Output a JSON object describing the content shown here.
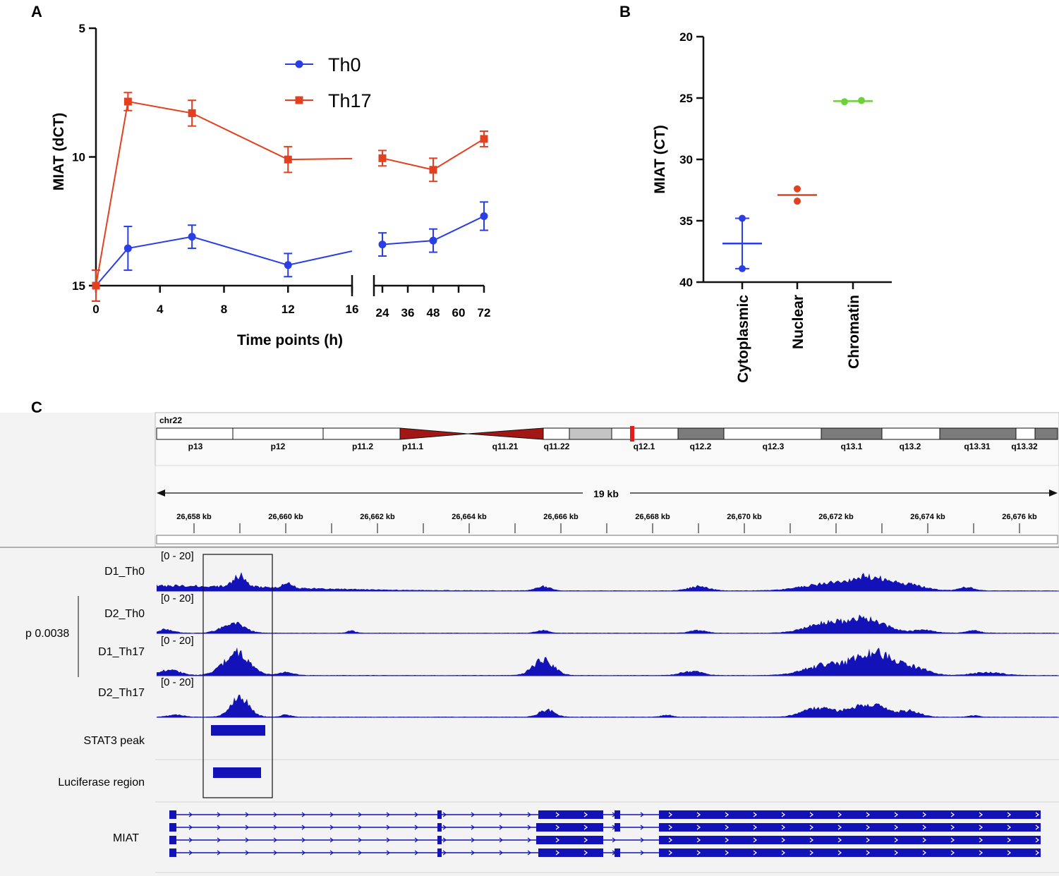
{
  "panels": {
    "a": "A",
    "b": "B",
    "c": "C"
  },
  "chart_data": [
    {
      "panel": "A",
      "type": "line",
      "title": "",
      "xlabel": "Time points (h)",
      "ylabel": "MIAT (dCT)",
      "ylim": [
        15,
        5
      ],
      "y_inverted": true,
      "yticks": [
        5,
        10,
        15
      ],
      "xticks_left": [
        0,
        4,
        8,
        12,
        16
      ],
      "xticks_right": [
        24,
        36,
        48,
        60,
        72
      ],
      "x_break": [
        16,
        24
      ],
      "legend": {
        "placement": "top-center",
        "entries": [
          "Th0",
          "Th17"
        ]
      },
      "series": [
        {
          "name": "Th0",
          "color": "#2a3ee6",
          "marker": "circle",
          "x": [
            0,
            2,
            6,
            12,
            24,
            48,
            72
          ],
          "y": [
            15.0,
            13.55,
            13.1,
            14.2,
            13.4,
            13.25,
            12.3
          ],
          "err": [
            0.6,
            0.85,
            0.45,
            0.45,
            0.45,
            0.45,
            0.55
          ]
        },
        {
          "name": "Th17",
          "color": "#e2401f",
          "marker": "square",
          "x": [
            0,
            2,
            6,
            12,
            24,
            48,
            72
          ],
          "y": [
            15.0,
            7.85,
            8.3,
            10.1,
            10.05,
            10.5,
            9.3
          ],
          "err": [
            0.6,
            0.35,
            0.5,
            0.5,
            0.3,
            0.45,
            0.3
          ]
        }
      ]
    },
    {
      "panel": "B",
      "type": "scatter",
      "title": "",
      "ylabel": "MIAT (CT)",
      "ylim": [
        40,
        20
      ],
      "y_inverted": true,
      "yticks": [
        20,
        25,
        30,
        35,
        40
      ],
      "categories": [
        "Cytoplasmic",
        "Nuclear",
        "Chromatin"
      ],
      "colors": [
        "#2a3ee6",
        "#e2401f",
        "#6ccf3c"
      ],
      "points": [
        [
          34.8,
          38.9
        ],
        [
          32.4,
          33.4
        ],
        [
          25.3,
          25.2
        ]
      ],
      "mean": [
        36.85,
        32.9,
        25.25
      ]
    },
    {
      "panel": "C",
      "type": "genome-track",
      "chromosome": "chr22",
      "bands": [
        "p13",
        "p12",
        "p11.2",
        "p11.1",
        "q11.21",
        "q11.22",
        "q12.1",
        "q12.2",
        "q12.3",
        "q13.1",
        "q13.2",
        "q13.31",
        "q13.32"
      ],
      "span_label": "19 kb",
      "ruler_labels": [
        "26,658 kb",
        "26,660 kb",
        "26,662 kb",
        "26,664 kb",
        "26,666 kb",
        "26,668 kb",
        "26,670 kb",
        "26,672 kb",
        "26,674 kb",
        "26,676 kb"
      ],
      "tracks": [
        {
          "name": "D1_Th0",
          "range": "[0 - 20]"
        },
        {
          "name": "D2_Th0",
          "range": "[0 - 20]"
        },
        {
          "name": "D1_Th17",
          "range": "[0 - 20]"
        },
        {
          "name": "D2_Th17",
          "range": "[0 - 20]"
        }
      ],
      "pvalue": "p 0.0038",
      "feature_tracks": [
        "STAT3 peak",
        "Luciferase region",
        "MIAT"
      ]
    }
  ]
}
